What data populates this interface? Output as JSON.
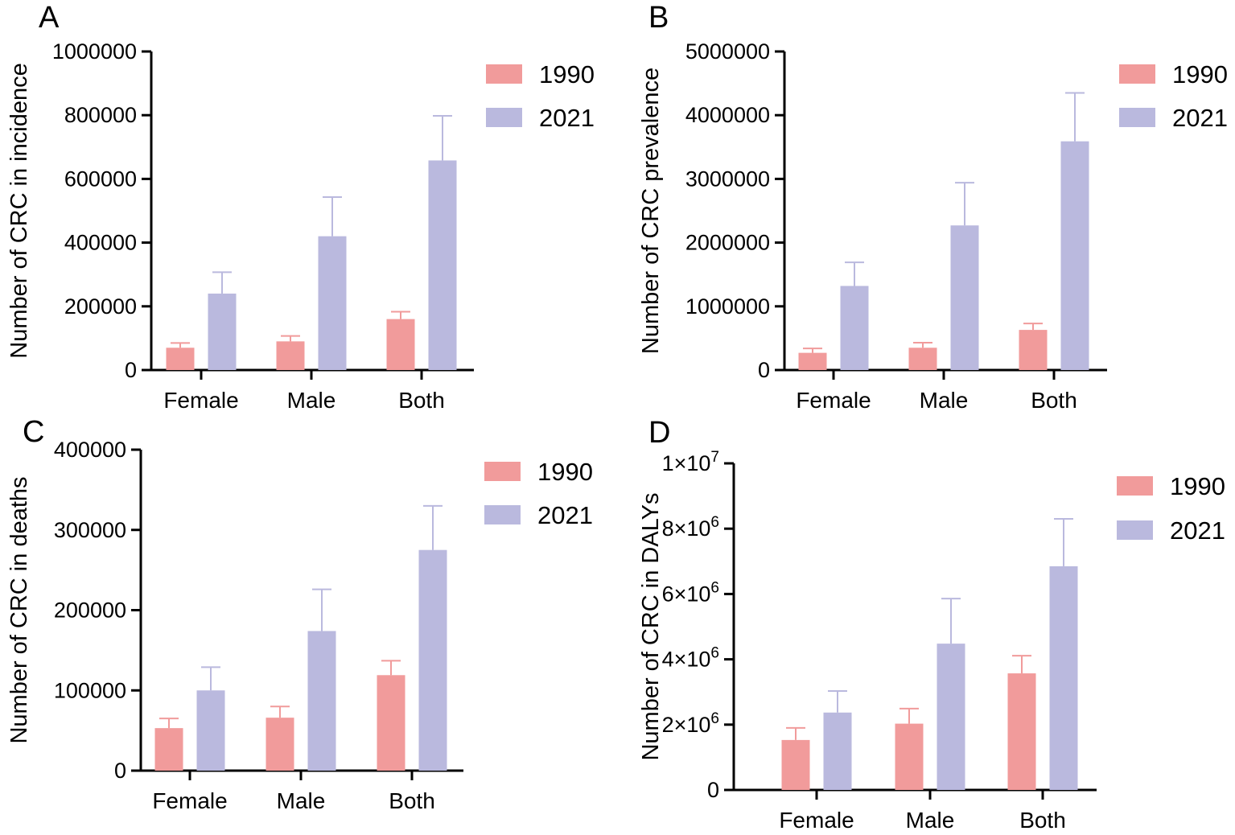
{
  "figure": {
    "colors": {
      "y1990": "#f19b9b",
      "y2021": "#bab9de",
      "axis": "#000000"
    },
    "legend": [
      "1990",
      "2021"
    ],
    "categories": [
      "Female",
      "Male",
      "Both"
    ]
  },
  "chart_data": [
    {
      "type": "bar",
      "panel": "A",
      "ylabel": "Number of CRC in incidence",
      "xlabel": "",
      "categories": [
        "Female",
        "Male",
        "Both"
      ],
      "ylim": [
        0,
        1000000
      ],
      "yticks": [
        0,
        200000,
        400000,
        600000,
        800000,
        1000000
      ],
      "ytick_labels": [
        "0",
        "200000",
        "400000",
        "600000",
        "800000",
        "1000000"
      ],
      "series": [
        {
          "name": "1990",
          "values": [
            70000,
            90000,
            160000
          ],
          "error_upper": [
            85000,
            107000,
            183000
          ]
        },
        {
          "name": "2021",
          "values": [
            240000,
            420000,
            658000
          ],
          "error_upper": [
            307000,
            543000,
            798000
          ]
        }
      ]
    },
    {
      "type": "bar",
      "panel": "B",
      "ylabel": "Number of CRC prevalence",
      "xlabel": "",
      "categories": [
        "Female",
        "Male",
        "Both"
      ],
      "ylim": [
        0,
        5000000
      ],
      "yticks": [
        0,
        1000000,
        2000000,
        3000000,
        4000000,
        5000000
      ],
      "ytick_labels": [
        "0",
        "1000000",
        "2000000",
        "3000000",
        "4000000",
        "5000000"
      ],
      "series": [
        {
          "name": "1990",
          "values": [
            270000,
            350000,
            630000
          ],
          "error_upper": [
            340000,
            430000,
            730000
          ]
        },
        {
          "name": "2021",
          "values": [
            1320000,
            2270000,
            3590000
          ],
          "error_upper": [
            1690000,
            2940000,
            4350000
          ]
        }
      ]
    },
    {
      "type": "bar",
      "panel": "C",
      "ylabel": "Number of CRC in deaths",
      "xlabel": "",
      "categories": [
        "Female",
        "Male",
        "Both"
      ],
      "ylim": [
        0,
        400000
      ],
      "yticks": [
        0,
        100000,
        200000,
        300000,
        400000
      ],
      "ytick_labels": [
        "0",
        "100000",
        "200000",
        "300000",
        "400000"
      ],
      "series": [
        {
          "name": "1990",
          "values": [
            53000,
            66000,
            119000
          ],
          "error_upper": [
            65000,
            80000,
            137000
          ]
        },
        {
          "name": "2021",
          "values": [
            100000,
            174000,
            275000
          ],
          "error_upper": [
            129000,
            226000,
            330000
          ]
        }
      ]
    },
    {
      "type": "bar",
      "panel": "D",
      "ylabel": "Number of CRC in DALYs",
      "xlabel": "",
      "categories": [
        "Female",
        "Male",
        "Both"
      ],
      "ylim": [
        0,
        10000000
      ],
      "yticks": [
        0,
        2000000,
        4000000,
        6000000,
        8000000,
        10000000
      ],
      "ytick_labels": [
        {
          "base": "0",
          "exp": ""
        },
        {
          "base": "2×10",
          "exp": "6"
        },
        {
          "base": "4×10",
          "exp": "6"
        },
        {
          "base": "6×10",
          "exp": "6"
        },
        {
          "base": "8×10",
          "exp": "6"
        },
        {
          "base": "1×10",
          "exp": "7"
        }
      ],
      "series": [
        {
          "name": "1990",
          "values": [
            1530000,
            2030000,
            3570000
          ],
          "error_upper": [
            1900000,
            2490000,
            4110000
          ]
        },
        {
          "name": "2021",
          "values": [
            2370000,
            4480000,
            6850000
          ],
          "error_upper": [
            3030000,
            5860000,
            8300000
          ]
        }
      ]
    }
  ]
}
